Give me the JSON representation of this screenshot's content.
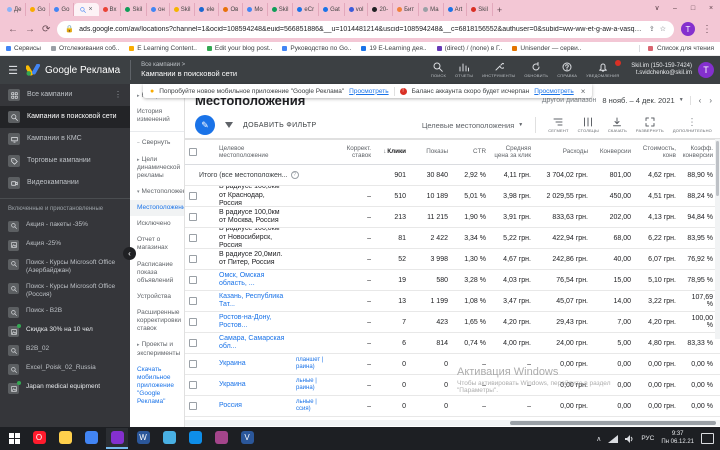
{
  "browser": {
    "tabs": [
      {
        "label": "Де",
        "color": "#8ab4f8"
      },
      {
        "label": "Go",
        "color": "#f9ab00"
      },
      {
        "label": "Go",
        "color": "#4285f4"
      },
      {
        "label": "",
        "color": "#4285f4",
        "active": true
      },
      {
        "label": "Вх",
        "color": "#ea4335"
      },
      {
        "label": "Skil",
        "color": "#0f9d58"
      },
      {
        "label": "он",
        "color": "#4285f4"
      },
      {
        "label": "Skil",
        "color": "#f4b400"
      },
      {
        "label": "ele",
        "color": "#1967d2"
      },
      {
        "label": "Ов",
        "color": "#e8710a"
      },
      {
        "label": "Мо",
        "color": "#4285f4"
      },
      {
        "label": "Skil",
        "color": "#0f9d58"
      },
      {
        "label": "eCr",
        "color": "#1a73e8"
      },
      {
        "label": "Gat",
        "color": "#1a73e8"
      },
      {
        "label": "vol",
        "color": "#3b5bdb"
      },
      {
        "label": "20-",
        "color": "#202124"
      },
      {
        "label": "Бит",
        "color": "#f0823c"
      },
      {
        "label": "Ма",
        "color": "#9aa0a6"
      },
      {
        "label": "Art",
        "color": "#1a73e8"
      },
      {
        "label": "Skil",
        "color": "#d93025"
      }
    ],
    "new_tab": "+",
    "close_glyph": "×",
    "window_controls": {
      "menu": "∨",
      "min": "–",
      "max": "□",
      "close": "×"
    },
    "nav": {
      "back": "←",
      "forward": "→",
      "reload": "⟳"
    },
    "url": "ads.google.com/aw/locations?channel=1&ocid=108594248&euid=566851886&__u=1014481214&uscid=108594248&__c=6818156552&authuser=0&subid=ww-ww-et-g-aw-a-vasquett...",
    "avatar_letter": "T",
    "bookmarks": [
      {
        "label": "Сервисы",
        "color": "#4285f4"
      },
      {
        "label": "Отслеживания соб..",
        "color": "#9aa0a6"
      },
      {
        "label": "E Learning Content..",
        "color": "#f9ab00"
      },
      {
        "label": "Edit your blog post..",
        "color": "#34a853"
      },
      {
        "label": "Руководство по Go..",
        "color": "#4285f4"
      },
      {
        "label": "19 E-Learning дея..",
        "color": "#1a73e8"
      },
      {
        "label": "(direct) / (none) в Г..",
        "color": "#673ab7"
      },
      {
        "label": "Unisender — серви..",
        "color": "#e37400"
      }
    ],
    "reading_list": "Список для чтения"
  },
  "ads_header": {
    "product": "Google Реклама",
    "breadcrumb_top": "Все кампании  >",
    "breadcrumb_current": "Кампании в поисковой сети",
    "actions": [
      {
        "icon": "search-icon",
        "label": "ПОИСК"
      },
      {
        "icon": "reports-icon",
        "label": "ОТЧЕТЫ"
      },
      {
        "icon": "tools-icon",
        "label": "ИНСТРУМЕНТЫ"
      },
      {
        "icon": "refresh-icon",
        "label": "ОБНОВИТЬ"
      },
      {
        "icon": "help-icon",
        "label": "СПРАВКА"
      },
      {
        "icon": "notifications-icon",
        "label": "УВЕДОМЛЕНИЯ",
        "badge": true
      }
    ],
    "account_name": "Skil.im (150-159-7424)",
    "account_email": "t.svidchenko@skil.im",
    "avatar_letter": "T"
  },
  "toast": {
    "tip_text": "Попробуйте новое мобильное приложение \"Google Реклама\"",
    "tip_link": "Просмотреть",
    "alert_text": "Баланс аккаунта скоро будет исчерпан",
    "alert_link": "Просмотреть",
    "close": "×"
  },
  "sidebar": {
    "items": [
      {
        "label": "Все кампании",
        "icon": "grid",
        "more": true
      },
      {
        "label": "Кампании в поисковой сети",
        "icon": "search",
        "selected": true
      },
      {
        "label": "Кампании в КМС",
        "icon": "display"
      },
      {
        "label": "Торговые кампании",
        "icon": "tag"
      },
      {
        "label": "Видеокампании",
        "icon": "video"
      }
    ],
    "section_label": "Включенные и приостановленные",
    "campaigns": [
      {
        "label": "Акция - пакеты -35%",
        "icon": "search"
      },
      {
        "label": "Акция -25%",
        "icon": "image"
      },
      {
        "label": "Поиск - Курсы Microsoft Office (Азербайджан)",
        "icon": "search"
      },
      {
        "label": "Поиск - Курсы Microsoft Office (Россия)",
        "icon": "search"
      },
      {
        "label": "Поиск - B2B",
        "icon": "search"
      },
      {
        "label": "Скидка 30% на 10 чел",
        "icon": "image",
        "active": true
      },
      {
        "label": "B2B_02",
        "icon": "search"
      },
      {
        "label": "Excel_Poisk_02_Russia",
        "icon": "search"
      },
      {
        "label": "Japan medical equipment",
        "icon": "image",
        "active": true
      }
    ],
    "collapse_glyph": "‹"
  },
  "subnav": {
    "items": [
      {
        "label": "Настройки",
        "arrow": "▸"
      },
      {
        "label": "История изменений"
      },
      {
        "divider": true
      },
      {
        "label": "Свернуть",
        "arrow": "−"
      },
      {
        "label": "Цели динамической рекламы",
        "arrow": "▸"
      },
      {
        "label": "Местоположения",
        "arrow": "▾"
      },
      {
        "label": "Местоположения",
        "selected": true
      },
      {
        "label": "Исключено"
      },
      {
        "label": "Отчет о магазинах"
      },
      {
        "label": "Расписание показа объявлений"
      },
      {
        "label": "Устройства"
      },
      {
        "label": "Расширенные корректировки ставок"
      },
      {
        "label": "Проекты и эксперименты",
        "arrow": "▸"
      },
      {
        "label": "Скачать мобильное приложение \"Google Реклама\"",
        "link": true
      }
    ]
  },
  "main": {
    "page_title": "Местоположения",
    "date_range_label": "Другой диапазон",
    "date_range": "8 нояб. – 4 дек. 2021",
    "date_caret": "▼",
    "date_prev": "‹",
    "date_next": "›",
    "add_filter_label": "ДОБАВИТЬ ФИЛЬТР",
    "view_selector": "Целевые местоположения",
    "view_caret": "▼",
    "tool_buttons": [
      {
        "icon": "segment-icon",
        "label": "СЕГМЕНТ"
      },
      {
        "icon": "columns-icon",
        "label": "СТОЛБЦЫ"
      },
      {
        "icon": "download-icon",
        "label": "СКАЧАТЬ"
      },
      {
        "icon": "expand-icon",
        "label": "РАЗВЕРНУТЬ"
      },
      {
        "icon": "more-icon",
        "label": "ДОПОЛНИТЕЛЬНО"
      }
    ]
  },
  "table": {
    "sort_arrow": "↓",
    "columns": {
      "location": "Целевое местоположение",
      "campaign": "",
      "bid": "Коррект. ставок",
      "clicks": "Клики",
      "impr": "Показы",
      "ctr": "CTR",
      "cpc": "Средняя цена за клик",
      "cost": "Расходы",
      "conv": "Конверсии",
      "cpa": "Стоимость, конв",
      "rate": "Коэфф. конверсии"
    },
    "totals": {
      "label": "Итого (все местоположен...",
      "clicks": "901",
      "impr": "30 840",
      "ctr": "2,92 %",
      "cpc": "4,11 грн.",
      "cost": "3 704,02 грн.",
      "conv": "801,00",
      "cpa": "4,62 грн.",
      "rate": "88,90 %"
    },
    "rows": [
      {
        "name": "В радиусе 100,0км от Краснодар, Россия",
        "link": false,
        "campaign": "",
        "bid": "–",
        "clicks": "510",
        "impr": "10 189",
        "ctr": "5,01 %",
        "cpc": "3,98 грн.",
        "cost": "2 029,55 грн.",
        "conv": "450,00",
        "cpa": "4,51 грн.",
        "rate": "88,24 %"
      },
      {
        "name": "В радиусе 100,0км от Москва, Россия",
        "link": false,
        "campaign": "",
        "bid": "–",
        "clicks": "213",
        "impr": "11 215",
        "ctr": "1,90 %",
        "cpc": "3,91 грн.",
        "cost": "833,63 грн.",
        "conv": "202,00",
        "cpa": "4,13 грн.",
        "rate": "94,84 %"
      },
      {
        "name": "В радиусе 100,0км от Новосибирск, Россия",
        "link": false,
        "campaign": "",
        "bid": "–",
        "clicks": "81",
        "impr": "2 422",
        "ctr": "3,34 %",
        "cpc": "5,22 грн.",
        "cost": "422,94 грн.",
        "conv": "68,00",
        "cpa": "6,22 грн.",
        "rate": "83,95 %"
      },
      {
        "name": "В радиусе 20,0мил. от Питер, Россия",
        "link": false,
        "campaign": "",
        "bid": "–",
        "clicks": "52",
        "impr": "3 998",
        "ctr": "1,30 %",
        "cpc": "4,67 грн.",
        "cost": "242,86 грн.",
        "conv": "40,00",
        "cpa": "6,07 грн.",
        "rate": "76,92 %"
      },
      {
        "name": "Омск, Омская область, ...",
        "link": true,
        "campaign": "",
        "bid": "–",
        "clicks": "19",
        "impr": "580",
        "ctr": "3,28 %",
        "cpc": "4,03 грн.",
        "cost": "76,54 грн.",
        "conv": "15,00",
        "cpa": "5,10 грн.",
        "rate": "78,95 %"
      },
      {
        "name": "Казань, Республика Тат...",
        "link": true,
        "campaign": "",
        "bid": "–",
        "clicks": "13",
        "impr": "1 199",
        "ctr": "1,08 %",
        "cpc": "3,47 грн.",
        "cost": "45,07 грн.",
        "conv": "14,00",
        "cpa": "3,22 грн.",
        "rate": "107,69 %"
      },
      {
        "name": "Ростов-на-Дону, Ростов...",
        "link": true,
        "campaign": "",
        "bid": "–",
        "clicks": "7",
        "impr": "423",
        "ctr": "1,65 %",
        "cpc": "4,20 грн.",
        "cost": "29,43 грн.",
        "conv": "7,00",
        "cpa": "4,20 грн.",
        "rate": "100,00 %"
      },
      {
        "name": "Самара, Самарская обл...",
        "link": true,
        "campaign": "",
        "bid": "–",
        "clicks": "6",
        "impr": "814",
        "ctr": "0,74 %",
        "cpc": "4,00 грн.",
        "cost": "24,00 грн.",
        "conv": "5,00",
        "cpa": "4,80 грн.",
        "rate": "83,33 %"
      },
      {
        "name": "Украина",
        "link": true,
        "campaign": "планшет |\nраина)",
        "bid": "–",
        "clicks": "0",
        "impr": "0",
        "ctr": "–",
        "cpc": "–",
        "cost": "0,00 грн.",
        "conv": "0,00",
        "cpa": "0,00 грн.",
        "rate": "0,00 %"
      },
      {
        "name": "Украина",
        "link": true,
        "campaign": "льные |\nраина)",
        "bid": "–",
        "clicks": "0",
        "impr": "0",
        "ctr": "–",
        "cpc": "–",
        "cost": "0,00 грн.",
        "conv": "0,00",
        "cpa": "0,00 грн.",
        "rate": "0,00 %"
      },
      {
        "name": "Россия",
        "link": true,
        "campaign": "льные |\nссия)",
        "bid": "–",
        "clicks": "0",
        "impr": "0",
        "ctr": "–",
        "cpc": "–",
        "cost": "0,00 грн.",
        "conv": "0,00",
        "cpa": "0,00 грн.",
        "rate": "0,00 %"
      }
    ]
  },
  "watermark": {
    "line1": "Активация Windows",
    "line2": "Чтобы активировать Windows, перейдите в раздел",
    "line3": "\"Параметры\"."
  },
  "taskbar": {
    "icons": [
      {
        "name": "opera",
        "color": "#ff1b2d",
        "glyph": "O"
      },
      {
        "name": "file-explorer",
        "color": "#ffd04c",
        "glyph": ""
      },
      {
        "name": "chrome-remote",
        "color": "#4285f4",
        "glyph": ""
      },
      {
        "name": "chrome",
        "color": "#8430ce",
        "glyph": "",
        "open": true
      },
      {
        "name": "word",
        "color": "#2b579a",
        "glyph": "W"
      },
      {
        "name": "photos",
        "color": "#49b0e3",
        "glyph": ""
      },
      {
        "name": "teamviewer",
        "color": "#0e8ee9",
        "glyph": ""
      },
      {
        "name": "winrar",
        "color": "#a4458b",
        "glyph": ""
      },
      {
        "name": "office-app",
        "color": "#2b579a",
        "glyph": "V"
      }
    ],
    "tray": {
      "expand": "∧",
      "lang": "РУС",
      "time": "9:37",
      "date": "Пн 06.12.21"
    }
  }
}
